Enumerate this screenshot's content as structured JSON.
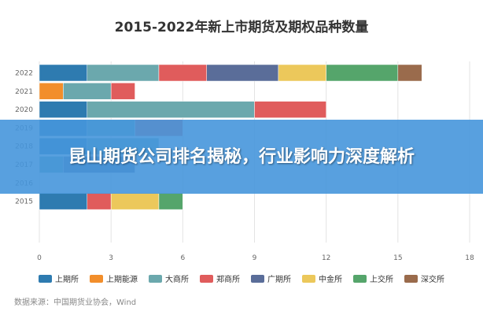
{
  "chart_data": {
    "type": "bar",
    "orientation": "horizontal",
    "stacked": true,
    "title": "2015-2022年新上市期货及期权品种数量",
    "categories": [
      "2022",
      "2021",
      "2020",
      "2019",
      "2018",
      "2017",
      "2016",
      "2015"
    ],
    "xlim": [
      0,
      18
    ],
    "xticks": [
      0,
      3,
      6,
      9,
      12,
      15,
      18
    ],
    "grid": true,
    "legend_position": "bottom",
    "series": [
      {
        "name": "上期所",
        "color": "#2e7bb0",
        "values": [
          2,
          0,
          2,
          2,
          2,
          0,
          0,
          2
        ]
      },
      {
        "name": "上期能源",
        "color": "#f28e2b",
        "values": [
          0,
          1,
          0,
          0,
          0,
          0,
          0,
          0
        ]
      },
      {
        "name": "大商所",
        "color": "#6ba8ad",
        "values": [
          3,
          2,
          7,
          2,
          3,
          1,
          0,
          0
        ]
      },
      {
        "name": "郑商所",
        "color": "#e05c5c",
        "values": [
          2,
          1,
          3,
          2,
          0,
          0,
          0,
          1
        ]
      },
      {
        "name": "广期所",
        "color": "#5a6d99",
        "values": [
          3,
          0,
          0,
          0,
          0,
          3,
          0,
          0
        ]
      },
      {
        "name": "中金所",
        "color": "#ecc85b",
        "values": [
          2,
          0,
          0,
          0,
          0,
          0,
          0,
          2
        ]
      },
      {
        "name": "上交所",
        "color": "#55a56b",
        "values": [
          3,
          0,
          0,
          0,
          0,
          0,
          0,
          1
        ]
      },
      {
        "name": "深交所",
        "color": "#9a6b4c",
        "values": [
          1,
          0,
          0,
          0,
          0,
          0,
          0,
          0
        ]
      }
    ],
    "source": "数据来源：中国期货业协会，Wind"
  },
  "banner": {
    "text": "昆山期货公司排名揭秘，行业影响力深度解析"
  }
}
